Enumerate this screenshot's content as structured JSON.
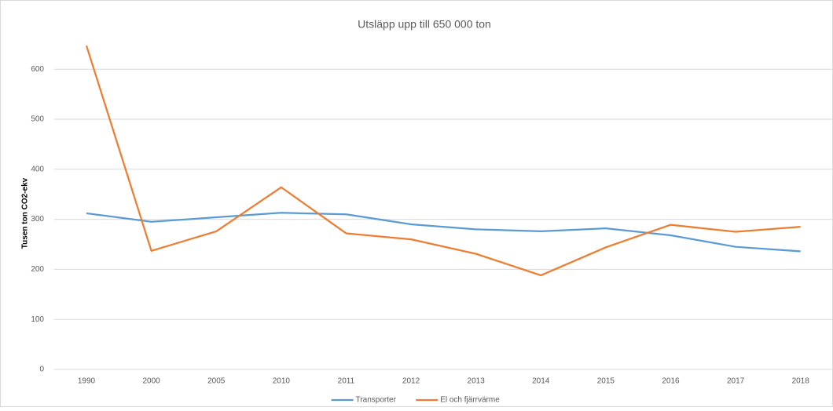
{
  "chart_data": {
    "type": "line",
    "title": "Utsläpp upp till 650 000 ton",
    "y_label": "Tusen ton CO2-ekv",
    "categories": [
      "1990",
      "2000",
      "2005",
      "2010",
      "2011",
      "2012",
      "2013",
      "2014",
      "2015",
      "2016",
      "2017",
      "2018"
    ],
    "series": [
      {
        "name": "Transporter",
        "color": "#5b9bd5",
        "values": [
          312,
          295,
          304,
          313,
          310,
          290,
          280,
          276,
          282,
          268,
          245,
          236
        ]
      },
      {
        "name": "El och fjärrvärme",
        "color": "#ed7d31",
        "values": [
          647,
          237,
          276,
          364,
          272,
          260,
          231,
          188,
          244,
          289,
          275,
          285
        ]
      }
    ],
    "ylim": [
      0,
      650
    ],
    "yticks": [
      0,
      100,
      200,
      300,
      400,
      500,
      600
    ],
    "grid": true,
    "legend": "bottom"
  }
}
